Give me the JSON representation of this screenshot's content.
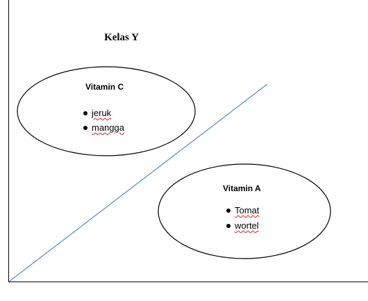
{
  "title": "Kelas Y",
  "groups": [
    {
      "heading": "Vitamin C",
      "items": [
        "jeruk",
        "mangga"
      ]
    },
    {
      "heading": "Vitamin A",
      "items": [
        "Tomat",
        "wortel"
      ]
    }
  ],
  "colors": {
    "divider_line": "#5b86c8",
    "spell_underline": "#e02020"
  }
}
